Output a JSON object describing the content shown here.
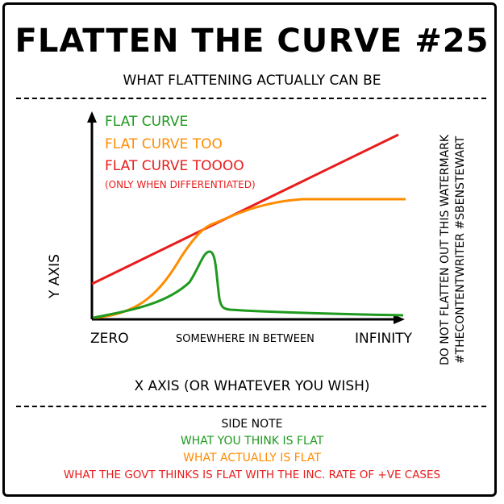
{
  "header": {
    "title": "FLATTEN THE CURVE #25",
    "subtitle": "WHAT FLATTENING ACTUALLY CAN BE"
  },
  "legend": {
    "items": [
      {
        "label": "FLAT CURVE",
        "color": "#1e9a1e"
      },
      {
        "label": "FLAT CURVE TOO",
        "color": "#ff8c00"
      },
      {
        "label": "FLAT CURVE TOOOO",
        "color": "#e81c1c"
      }
    ],
    "note": "(ONLY WHEN DIFFERENTIATED)"
  },
  "axes": {
    "y_label": "Y AXIS",
    "x_label": "X AXIS (OR WHATEVER YOU WISH)",
    "ticks": [
      "ZERO",
      "SOMEWHERE IN BETWEEN",
      "INFINITY"
    ]
  },
  "watermark": {
    "line1": "DO NOT FLATTEN OUT THIS WATERMARK",
    "line2": "#THECONTENTWRITER #SBENSTEWART"
  },
  "side_note": {
    "heading": "SIDE NOTE",
    "lines": [
      {
        "text": "WHAT YOU THINK IS FLAT",
        "color": "#1e9a1e"
      },
      {
        "text": "WHAT ACTUALLY IS FLAT",
        "color": "#ff8c00"
      },
      {
        "text": "WHAT THE GOVT THINKS IS FLAT WITH THE INC. RATE OF +VE CASES",
        "color": "#e81c1c"
      }
    ]
  }
}
